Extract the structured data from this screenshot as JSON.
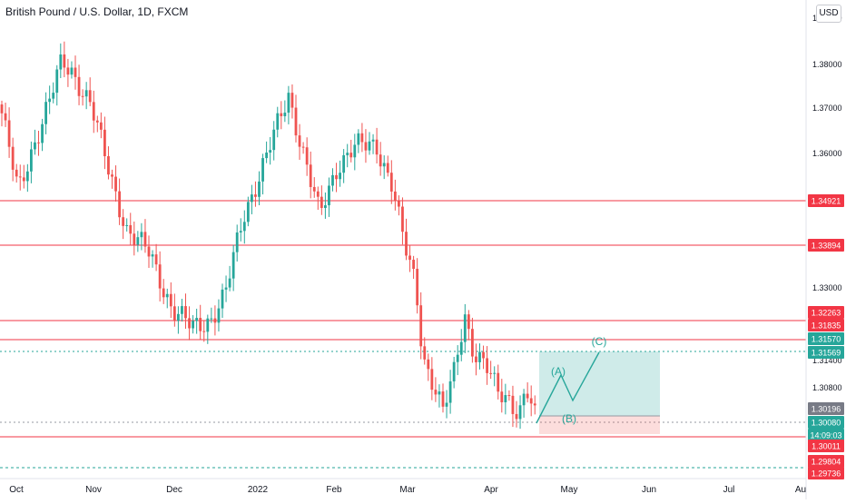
{
  "chart_data": {
    "type": "candlestick",
    "title": "British Pound / U.S. Dollar, 1D, FXCM",
    "currency": "USD",
    "x_tick_labels": [
      "Oct",
      "Nov",
      "Dec",
      "2022",
      "Feb",
      "Mar",
      "Apr",
      "May",
      "Jun",
      "Jul",
      "Au"
    ],
    "y_tick_labels": [
      "1.39000",
      "1.38000",
      "1.37000",
      "1.36000",
      "1.33000",
      "1.31400",
      "1.30800",
      "1.30080"
    ],
    "ylim": [
      1.296,
      1.395
    ],
    "horizontal_levels": [
      {
        "label": "1.34921",
        "value": 1.34921,
        "color": "#f23645"
      },
      {
        "label": "1.33894",
        "value": 1.33894,
        "color": "#f23645"
      },
      {
        "label": "1.32263",
        "value": 1.32263,
        "color": "#f23645"
      },
      {
        "label": "1.31835",
        "value": 1.31835,
        "color": "#f23645"
      },
      {
        "label": "1.31570",
        "value": 1.3157,
        "color": "#26a69a"
      },
      {
        "label": "1.31569",
        "value": 1.31569,
        "color": "#26a69a"
      },
      {
        "label": "1.30196",
        "value": 1.30196,
        "color": "#787b86"
      },
      {
        "label": "1.30080",
        "value": 1.3008,
        "color": "#26a69a"
      },
      {
        "label": "14:09:03",
        "value": 1.2995,
        "color": "#26a69a"
      },
      {
        "label": "1.30011",
        "value": 1.30011,
        "color": "#f23645"
      },
      {
        "label": "1.29804",
        "value": 1.29804,
        "color": "#f23645"
      },
      {
        "label": "1.29736",
        "value": 1.29736,
        "color": "#f23645"
      }
    ],
    "wave_labels": [
      "(A)",
      "(B)",
      "(C)"
    ],
    "grid": false,
    "colors": {
      "up": "#26a69a",
      "down": "#ef5350",
      "level": "#f23645",
      "target": "#26a69a",
      "stop": "#ef5350"
    }
  }
}
